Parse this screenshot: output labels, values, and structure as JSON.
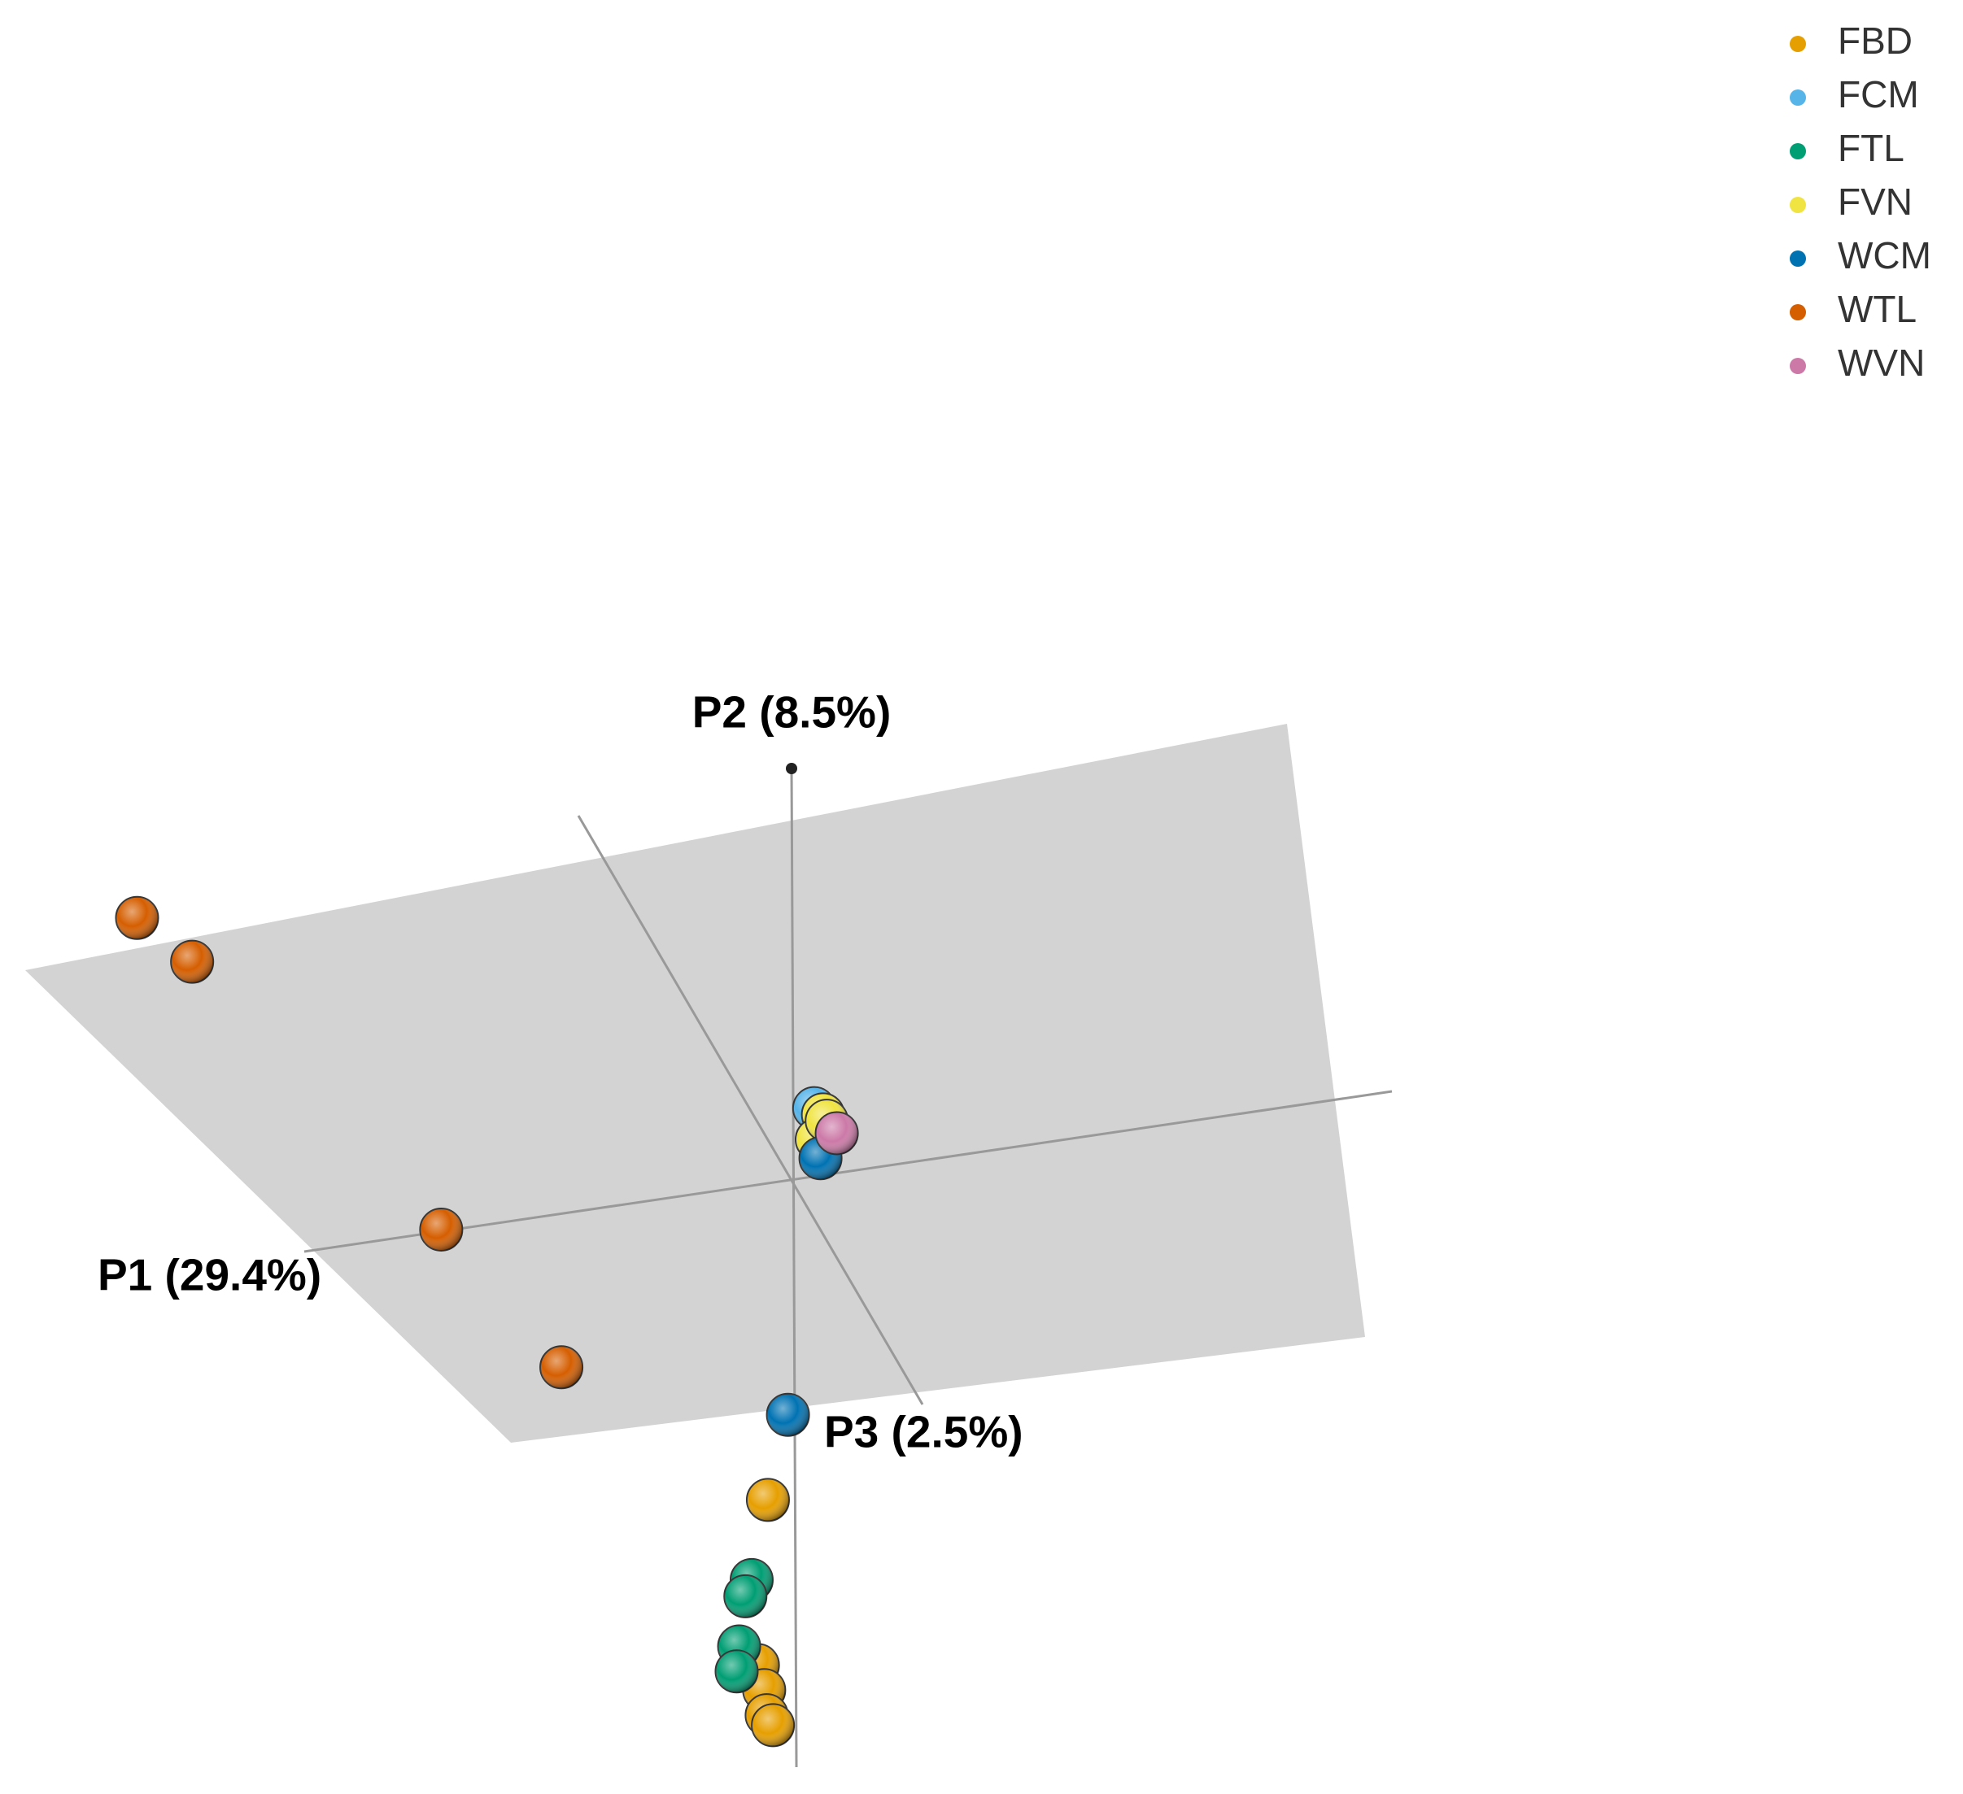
{
  "chart_data": {
    "type": "scatter3d",
    "xlabel": "P1 (29.4%)",
    "ylabel": "P2 (8.5%)",
    "zlabel": "P3 (2.5%)",
    "xlim": [
      -1.2,
      1.8
    ],
    "ylim": [
      -0.8,
      1.2
    ],
    "legend": "top-right",
    "series": [
      {
        "name": "FBD",
        "color": "#E69F00",
        "x": [
          -0.038,
          -0.054,
          -0.044,
          -0.04,
          -0.03
        ],
        "y": [
          -0.512,
          -0.776,
          -0.816,
          -0.856,
          -0.872
        ]
      },
      {
        "name": "FCM",
        "color": "#56B4E9",
        "x": [
          0.036
        ],
        "y": [
          0.114
        ]
      },
      {
        "name": "FTL",
        "color": "#009E73",
        "x": [
          -0.064,
          -0.074,
          -0.084,
          -0.088
        ],
        "y": [
          -0.64,
          -0.666,
          -0.746,
          -0.786
        ]
      },
      {
        "name": "FVN",
        "color": "#F0E442",
        "x": [
          0.05,
          0.04,
          0.056
        ],
        "y": [
          0.104,
          0.064,
          0.094
        ]
      },
      {
        "name": "WCM",
        "color": "#0072B2",
        "x": [
          -0.006,
          0.046
        ],
        "y": [
          -0.376,
          0.034
        ]
      },
      {
        "name": "WTL",
        "color": "#D55E00",
        "x": [
          -1.046,
          -0.958,
          -0.56,
          -0.368
        ],
        "y": [
          0.418,
          0.348,
          -0.08,
          -0.3
        ]
      },
      {
        "name": "WVN",
        "color": "#CC79A7",
        "x": [
          0.072
        ],
        "y": [
          0.074
        ]
      }
    ]
  }
}
